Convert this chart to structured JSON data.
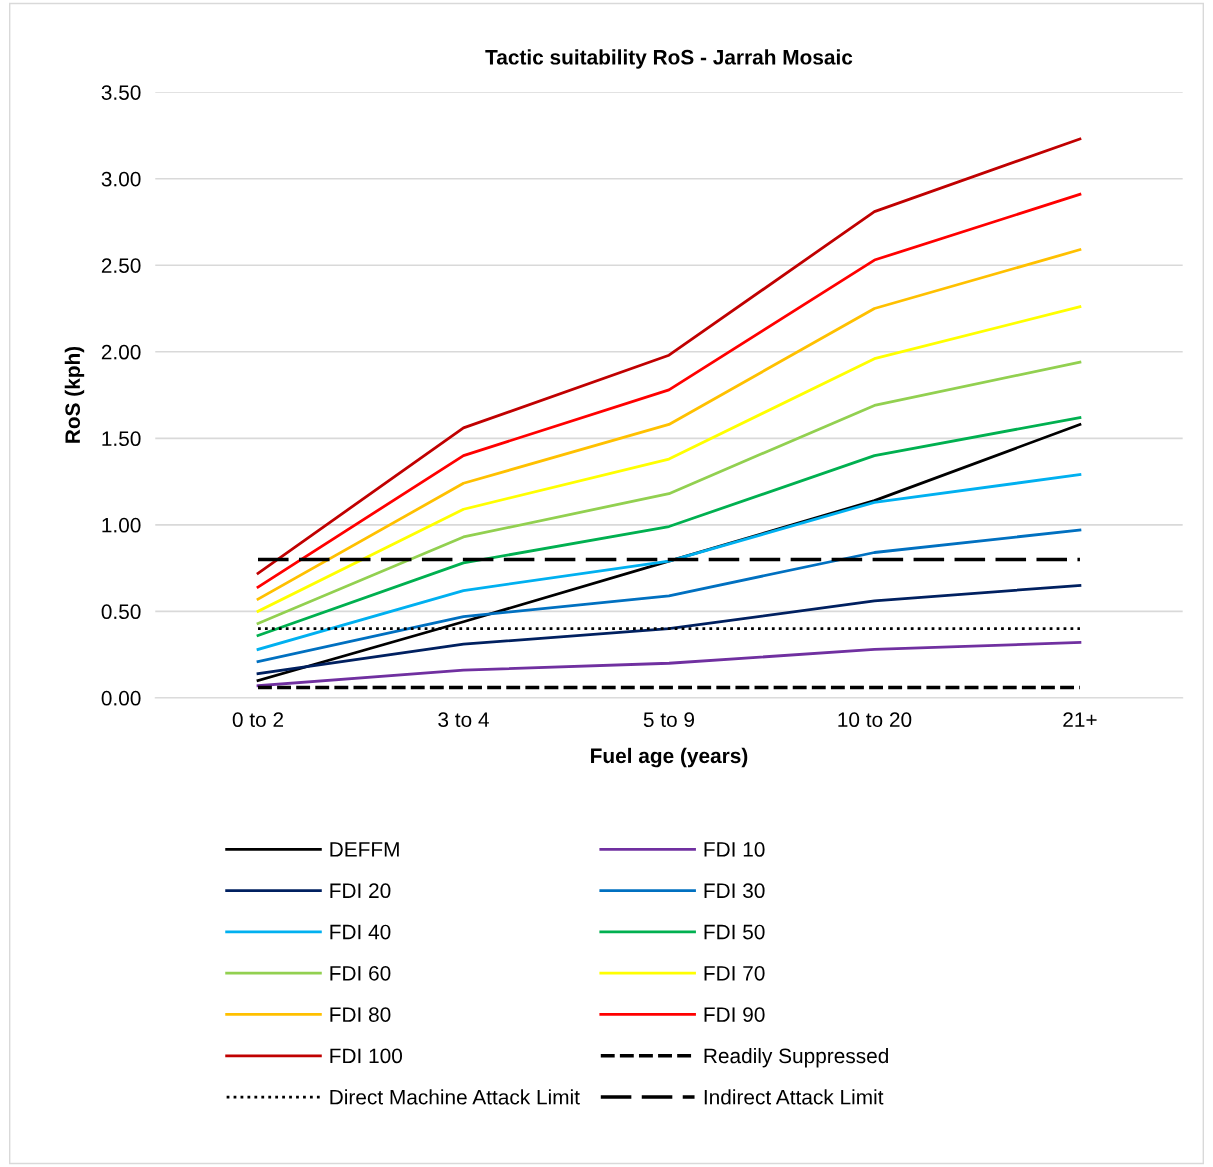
{
  "chart_data": {
    "type": "line",
    "title": "Tactic suitability RoS - Jarrah Mosaic",
    "xlabel": "Fuel age (years)",
    "ylabel": "RoS (kph)",
    "categories": [
      "0 to 2",
      "3 to 4",
      "5 to 9",
      "10 to 20",
      "21+"
    ],
    "series": [
      {
        "name": "DEFFM",
        "color": "#000000",
        "values": [
          0.1,
          0.44,
          0.79,
          1.14,
          1.58
        ]
      },
      {
        "name": "FDI 10",
        "color": "#7030a0",
        "values": [
          0.07,
          0.16,
          0.2,
          0.28,
          0.32
        ]
      },
      {
        "name": "FDI 20",
        "color": "#002060",
        "values": [
          0.14,
          0.31,
          0.4,
          0.56,
          0.65
        ]
      },
      {
        "name": "FDI 30",
        "color": "#0070c0",
        "values": [
          0.21,
          0.47,
          0.59,
          0.84,
          0.97
        ]
      },
      {
        "name": "FDI 40",
        "color": "#00b0f0",
        "values": [
          0.28,
          0.62,
          0.79,
          1.13,
          1.29
        ]
      },
      {
        "name": "FDI 50",
        "color": "#00b050",
        "values": [
          0.36,
          0.78,
          0.99,
          1.4,
          1.62
        ]
      },
      {
        "name": "FDI 60",
        "color": "#92d050",
        "values": [
          0.43,
          0.93,
          1.18,
          1.69,
          1.94
        ]
      },
      {
        "name": "FDI 70",
        "color": "#ffff00",
        "values": [
          0.5,
          1.09,
          1.38,
          1.96,
          2.26
        ]
      },
      {
        "name": "FDI 80",
        "color": "#ffc000",
        "values": [
          0.57,
          1.24,
          1.58,
          2.25,
          2.59
        ]
      },
      {
        "name": "FDI 90",
        "color": "#ff0000",
        "values": [
          0.64,
          1.4,
          1.78,
          2.53,
          2.91
        ]
      },
      {
        "name": "FDI 100",
        "color": "#c00000",
        "values": [
          0.72,
          1.56,
          1.98,
          2.81,
          3.23
        ]
      }
    ],
    "ref_lines": [
      {
        "axis": "y",
        "value": 0.06,
        "label": "Readily Suppressed",
        "color": "#000000",
        "line_style": "dashed"
      },
      {
        "axis": "y",
        "value": 0.4,
        "label": "Direct Machine Attack Limit",
        "color": "#000000",
        "line_style": "dotted"
      },
      {
        "axis": "y",
        "value": 0.8,
        "label": "Indirect Attack Limit",
        "color": "#000000",
        "line_style": "dashed"
      }
    ],
    "ylim": [
      0,
      3.5
    ],
    "yticks": [
      {
        "value": 0,
        "label": "0.00"
      },
      {
        "value": 0.5,
        "label": "0.50"
      },
      {
        "value": 1,
        "label": "1.00"
      },
      {
        "value": 1.5,
        "label": "1.50"
      },
      {
        "value": 2,
        "label": "2.00"
      },
      {
        "value": 2.5,
        "label": "2.50"
      },
      {
        "value": 3,
        "label": "3.00"
      },
      {
        "value": 3.5,
        "label": "3.50"
      }
    ],
    "grid": "y",
    "legend": "bottom",
    "marker": "none",
    "line_style": "solid"
  }
}
